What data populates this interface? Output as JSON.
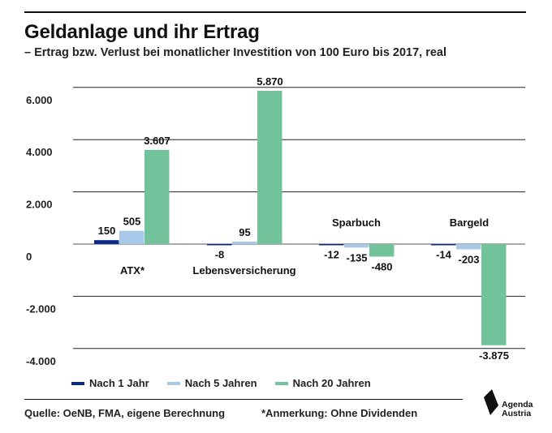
{
  "header": {
    "title": "Geldanlage und ihr Ertrag",
    "subtitle": "– Ertrag bzw. Verlust bei monatlicher Investition von 100 Euro bis 2017, real"
  },
  "chart_data": {
    "type": "bar",
    "categories": [
      "ATX*",
      "Lebensversicherung",
      "Sparbuch",
      "Bargeld"
    ],
    "series": [
      {
        "name": "Nach 1 Jahr",
        "color": "#0b2a8a",
        "values": [
          150,
          -8,
          -12,
          -14
        ],
        "labels": [
          "150",
          "-8",
          "-12",
          "-14"
        ]
      },
      {
        "name": "Nach 5 Jahren",
        "color": "#a8c8ea",
        "values": [
          505,
          95,
          -135,
          -203
        ],
        "labels": [
          "505",
          "95",
          "-135",
          "-203"
        ]
      },
      {
        "name": "Nach 20 Jahren",
        "color": "#72c39b",
        "values": [
          3607,
          5870,
          -480,
          -3875
        ],
        "labels": [
          "3.607",
          "5.870",
          "-480",
          "-3.875"
        ]
      }
    ],
    "yticks": [
      6000,
      4000,
      2000,
      0,
      -2000,
      -4000
    ],
    "ytick_labels": [
      "6.000",
      "4.000",
      "2.000",
      "0",
      "-2.000",
      "-4.000"
    ],
    "ylim": [
      -4000,
      6000
    ],
    "grid": true,
    "legend_position": "bottom-left"
  },
  "footer": {
    "source": "Quelle: OeNB, FMA, eigene Berechnung",
    "note": "*Anmerkung: Ohne Dividenden"
  },
  "logo": {
    "line1": "Agenda",
    "line2": "Austria"
  }
}
